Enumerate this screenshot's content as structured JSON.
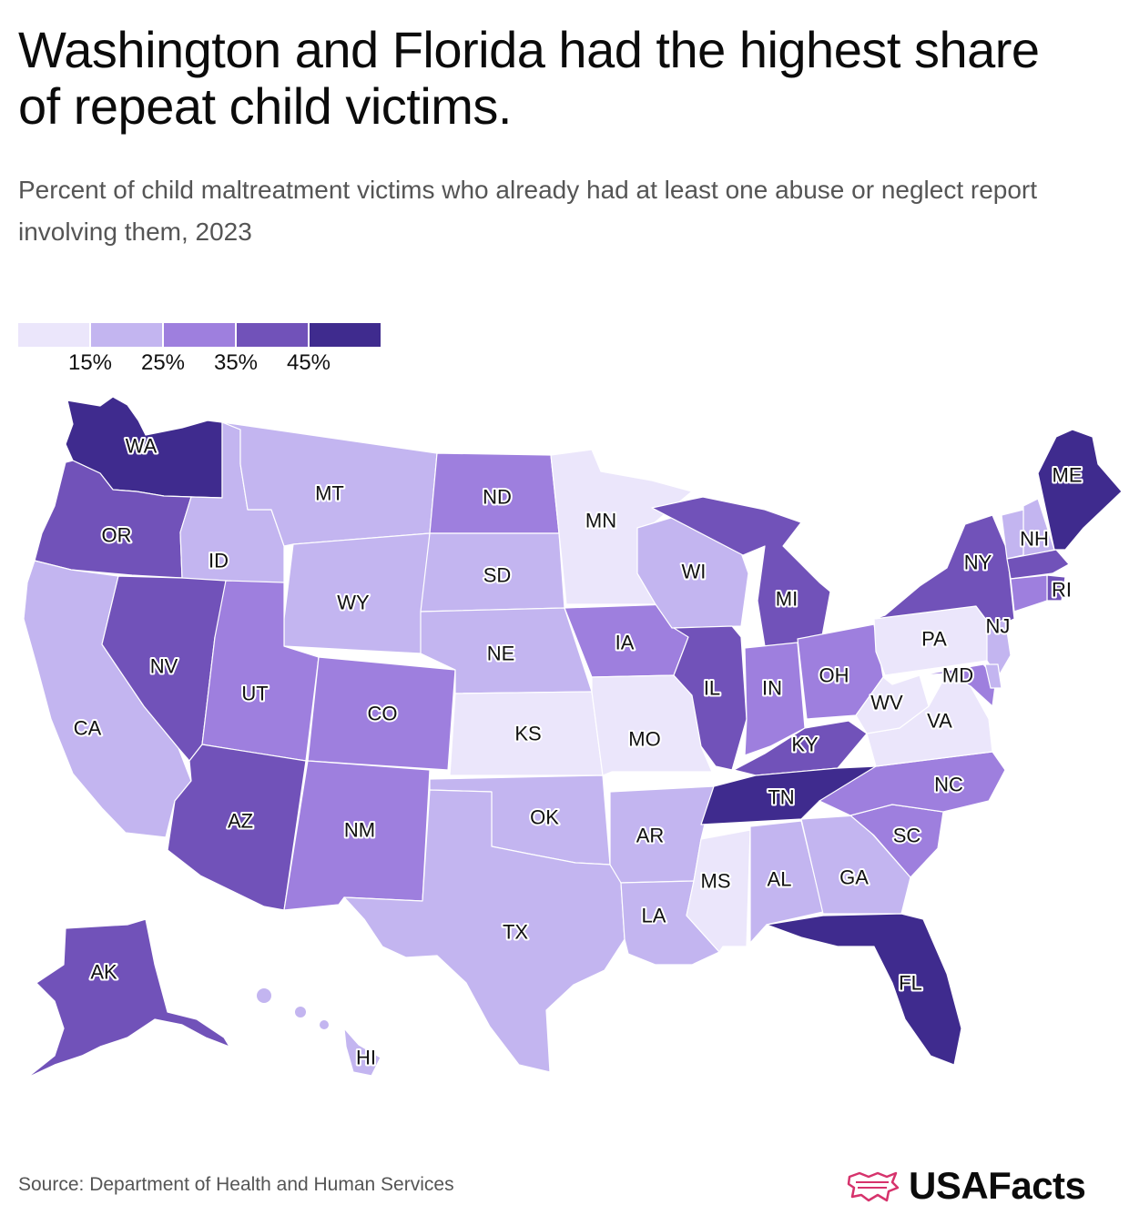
{
  "title": "Washington and Florida had the highest share of repeat child victims.",
  "subtitle": "Percent of child maltreatment victims who already had at least one abuse or neglect report involving them, 2023",
  "legend": {
    "ticks": [
      "15%",
      "25%",
      "35%",
      "45%"
    ],
    "colors": [
      "#ebe6fb",
      "#c3b5f0",
      "#9e7fde",
      "#7152b9",
      "#3f2b8e"
    ]
  },
  "chart_data": {
    "type": "choropleth",
    "value_bins": [
      "<15%",
      "15–25%",
      "25–35%",
      "35–45%",
      ">45%"
    ],
    "states": [
      {
        "code": "WA",
        "bin": 4
      },
      {
        "code": "OR",
        "bin": 3
      },
      {
        "code": "CA",
        "bin": 1
      },
      {
        "code": "ID",
        "bin": 1
      },
      {
        "code": "NV",
        "bin": 3
      },
      {
        "code": "MT",
        "bin": 1
      },
      {
        "code": "WY",
        "bin": 1
      },
      {
        "code": "UT",
        "bin": 2
      },
      {
        "code": "AZ",
        "bin": 3
      },
      {
        "code": "CO",
        "bin": 2
      },
      {
        "code": "NM",
        "bin": 2
      },
      {
        "code": "ND",
        "bin": 2
      },
      {
        "code": "SD",
        "bin": 1
      },
      {
        "code": "NE",
        "bin": 1
      },
      {
        "code": "KS",
        "bin": 0
      },
      {
        "code": "OK",
        "bin": 1
      },
      {
        "code": "TX",
        "bin": 1
      },
      {
        "code": "MN",
        "bin": 0
      },
      {
        "code": "IA",
        "bin": 2
      },
      {
        "code": "MO",
        "bin": 0
      },
      {
        "code": "AR",
        "bin": 1
      },
      {
        "code": "LA",
        "bin": 1
      },
      {
        "code": "WI",
        "bin": 1
      },
      {
        "code": "IL",
        "bin": 3
      },
      {
        "code": "MI",
        "bin": 3
      },
      {
        "code": "IN",
        "bin": 2
      },
      {
        "code": "OH",
        "bin": 2
      },
      {
        "code": "KY",
        "bin": 3
      },
      {
        "code": "TN",
        "bin": 4
      },
      {
        "code": "MS",
        "bin": 0
      },
      {
        "code": "AL",
        "bin": 1
      },
      {
        "code": "GA",
        "bin": 1
      },
      {
        "code": "FL",
        "bin": 4
      },
      {
        "code": "SC",
        "bin": 2
      },
      {
        "code": "NC",
        "bin": 2
      },
      {
        "code": "VA",
        "bin": 0
      },
      {
        "code": "WV",
        "bin": 0
      },
      {
        "code": "PA",
        "bin": 0
      },
      {
        "code": "NY",
        "bin": 3
      },
      {
        "code": "MD",
        "bin": 2
      },
      {
        "code": "NJ",
        "bin": 1
      },
      {
        "code": "ME",
        "bin": 4
      },
      {
        "code": "NH",
        "bin": 1
      },
      {
        "code": "RI",
        "bin": 3
      },
      {
        "code": "AK",
        "bin": 3
      },
      {
        "code": "HI",
        "bin": 1
      },
      {
        "code": "VT",
        "bin": 1
      },
      {
        "code": "MA",
        "bin": 3
      },
      {
        "code": "CT",
        "bin": 2
      },
      {
        "code": "DE",
        "bin": 1
      }
    ]
  },
  "source": "Source: Department of Health and Human Services",
  "brand": "USAFacts"
}
